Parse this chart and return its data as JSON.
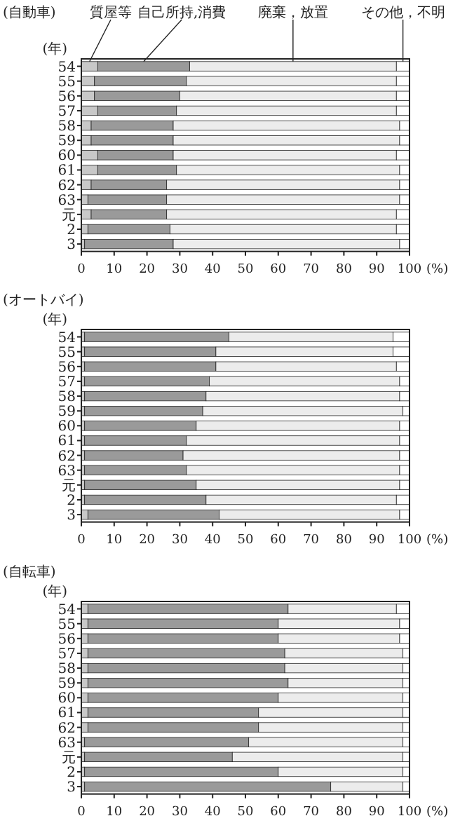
{
  "chart_data": [
    {
      "type": "bar",
      "orientation": "horizontal",
      "stacked": true,
      "title": "(自動車)",
      "ylabel": "(年)",
      "xlabel": "(%)",
      "legend": "top",
      "categories": [
        "54",
        "55",
        "56",
        "57",
        "58",
        "59",
        "60",
        "61",
        "62",
        "63",
        "元",
        "2",
        "3"
      ],
      "xlim": [
        0,
        100
      ],
      "xticks": [
        0,
        10,
        20,
        30,
        40,
        50,
        60,
        70,
        80,
        90,
        100
      ],
      "series": [
        {
          "name": "質屋等",
          "color": "#c8c8c8",
          "values": [
            5,
            4,
            4,
            5,
            3,
            3,
            5,
            5,
            3,
            2,
            3,
            2,
            1
          ]
        },
        {
          "name": "自己所持,消費",
          "color": "#9a9a9a",
          "values": [
            28,
            28,
            26,
            24,
            25,
            25,
            23,
            24,
            23,
            24,
            23,
            25,
            27
          ]
        },
        {
          "name": "廃棄，放置",
          "color": "#ececec",
          "values": [
            63,
            64,
            66,
            67,
            69,
            69,
            68,
            68,
            71,
            71,
            70,
            69,
            69
          ]
        },
        {
          "name": "その他，不明",
          "color": "#ffffff",
          "values": [
            4,
            4,
            4,
            4,
            3,
            3,
            4,
            3,
            3,
            3,
            4,
            4,
            3
          ]
        }
      ]
    },
    {
      "type": "bar",
      "orientation": "horizontal",
      "stacked": true,
      "title": "(オートバイ)",
      "ylabel": "(年)",
      "xlabel": "(%)",
      "categories": [
        "54",
        "55",
        "56",
        "57",
        "58",
        "59",
        "60",
        "61",
        "62",
        "63",
        "元",
        "2",
        "3"
      ],
      "xlim": [
        0,
        100
      ],
      "xticks": [
        0,
        10,
        20,
        30,
        40,
        50,
        60,
        70,
        80,
        90,
        100
      ],
      "series": [
        {
          "color": "#c8c8c8",
          "values": [
            1,
            1,
            1,
            1,
            1,
            1,
            1,
            1,
            1,
            1,
            1,
            1,
            2
          ]
        },
        {
          "color": "#9a9a9a",
          "values": [
            44,
            40,
            40,
            38,
            37,
            36,
            34,
            31,
            30,
            31,
            34,
            37,
            40
          ]
        },
        {
          "color": "#ececec",
          "values": [
            50,
            54,
            55,
            58,
            59,
            61,
            62,
            65,
            66,
            65,
            62,
            58,
            55
          ]
        },
        {
          "color": "#ffffff",
          "values": [
            5,
            5,
            4,
            3,
            3,
            2,
            3,
            3,
            3,
            3,
            3,
            4,
            3
          ]
        }
      ]
    },
    {
      "type": "bar",
      "orientation": "horizontal",
      "stacked": true,
      "title": "(自転車)",
      "ylabel": "(年)",
      "xlabel": "(%)",
      "categories": [
        "54",
        "55",
        "56",
        "57",
        "58",
        "59",
        "60",
        "61",
        "62",
        "63",
        "元",
        "2",
        "3"
      ],
      "xlim": [
        0,
        100
      ],
      "xticks": [
        0,
        10,
        20,
        30,
        40,
        50,
        60,
        70,
        80,
        90,
        100
      ],
      "series": [
        {
          "color": "#c8c8c8",
          "values": [
            2,
            2,
            2,
            2,
            2,
            2,
            2,
            2,
            2,
            1,
            1,
            1,
            1
          ]
        },
        {
          "color": "#9a9a9a",
          "values": [
            61,
            58,
            58,
            60,
            60,
            61,
            58,
            52,
            52,
            50,
            45,
            59,
            75
          ]
        },
        {
          "color": "#ececec",
          "values": [
            33,
            37,
            37,
            36,
            36,
            35,
            38,
            44,
            44,
            47,
            52,
            38,
            22
          ]
        },
        {
          "color": "#ffffff",
          "values": [
            4,
            3,
            3,
            2,
            2,
            2,
            2,
            2,
            2,
            2,
            2,
            2,
            2
          ]
        }
      ]
    }
  ]
}
